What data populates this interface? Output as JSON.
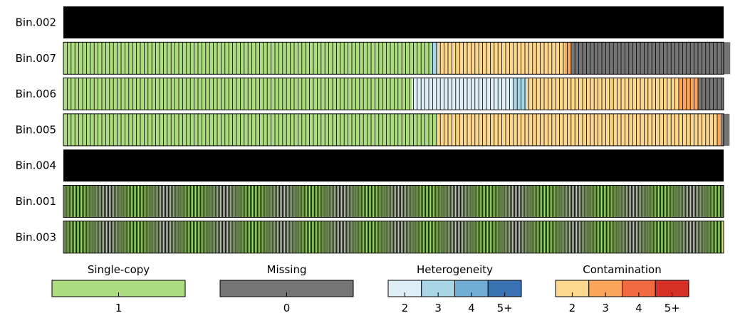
{
  "colors": {
    "single_copy": "#addc80",
    "missing": "#757575",
    "het_2": "#deeef7",
    "het_3": "#a8d6e6",
    "het_4": "#71acd4",
    "het_5plus": "#3a72b4",
    "con_2": "#fdd78d",
    "con_3": "#fba65a",
    "con_4": "#f26a40",
    "con_5plus": "#d73127",
    "black_bin": "#000000",
    "line": "#000000"
  },
  "chart_data": {
    "type": "bar",
    "rows": [
      {
        "label": "Bin.002",
        "style": "black",
        "single": 0,
        "het2": 0,
        "het3": 0,
        "het4": 0,
        "het5": 0,
        "con2": 0,
        "con3": 0,
        "con4": 0,
        "con5": 0,
        "missing": 0
      },
      {
        "label": "Bin.007",
        "style": "segments",
        "single": 0.557,
        "het2": 0,
        "het3": 0.01,
        "het4": 0,
        "het5": 0,
        "con2": 0.192,
        "con3": 0.01,
        "con4": 0,
        "con5": 0,
        "missing": 0.241
      },
      {
        "label": "Bin.006",
        "style": "segments",
        "single": 0.528,
        "het2": 0.153,
        "het3": 0.02,
        "het4": 0,
        "het5": 0,
        "con2": 0.23,
        "con3": 0.03,
        "con4": 0,
        "con5": 0,
        "missing": 0.039
      },
      {
        "label": "Bin.005",
        "style": "segments",
        "single": 0.566,
        "het2": 0,
        "het3": 0,
        "het4": 0,
        "het5": 0,
        "con2": 0.424,
        "con3": 0.008,
        "con4": 0,
        "con5": 0,
        "missing": 0.011
      },
      {
        "label": "Bin.004",
        "style": "black",
        "single": 0,
        "het2": 0,
        "het3": 0,
        "het4": 0,
        "het5": 0,
        "con2": 0,
        "con3": 0,
        "con4": 0,
        "con5": 0,
        "missing": 0
      },
      {
        "label": "Bin.001",
        "style": "dense",
        "single": 0.997,
        "het2": 0,
        "het3": 0,
        "het4": 0,
        "het5": 0,
        "con2": 0,
        "con3": 0,
        "con4": 0,
        "con5": 0,
        "missing": 0.003
      },
      {
        "label": "Bin.003",
        "style": "dense",
        "single": 0.998,
        "het2": 0,
        "het3": 0,
        "het4": 0,
        "het5": 0,
        "con2": 0.002,
        "con3": 0,
        "con4": 0,
        "con5": 0,
        "missing": 0
      }
    ],
    "legend": [
      {
        "title": "Single-copy",
        "swatches": [
          {
            "key": "single_copy",
            "label": "1"
          }
        ]
      },
      {
        "title": "Missing",
        "swatches": [
          {
            "key": "missing",
            "label": "0"
          }
        ]
      },
      {
        "title": "Heterogeneity",
        "swatches": [
          {
            "key": "het_2",
            "label": "2"
          },
          {
            "key": "het_3",
            "label": "3"
          },
          {
            "key": "het_4",
            "label": "4"
          },
          {
            "key": "het_5plus",
            "label": "5+"
          }
        ]
      },
      {
        "title": "Contamination",
        "swatches": [
          {
            "key": "con_2",
            "label": "2"
          },
          {
            "key": "con_3",
            "label": "3"
          },
          {
            "key": "con_4",
            "label": "4"
          },
          {
            "key": "con_5plus",
            "label": "5+"
          }
        ]
      }
    ]
  }
}
